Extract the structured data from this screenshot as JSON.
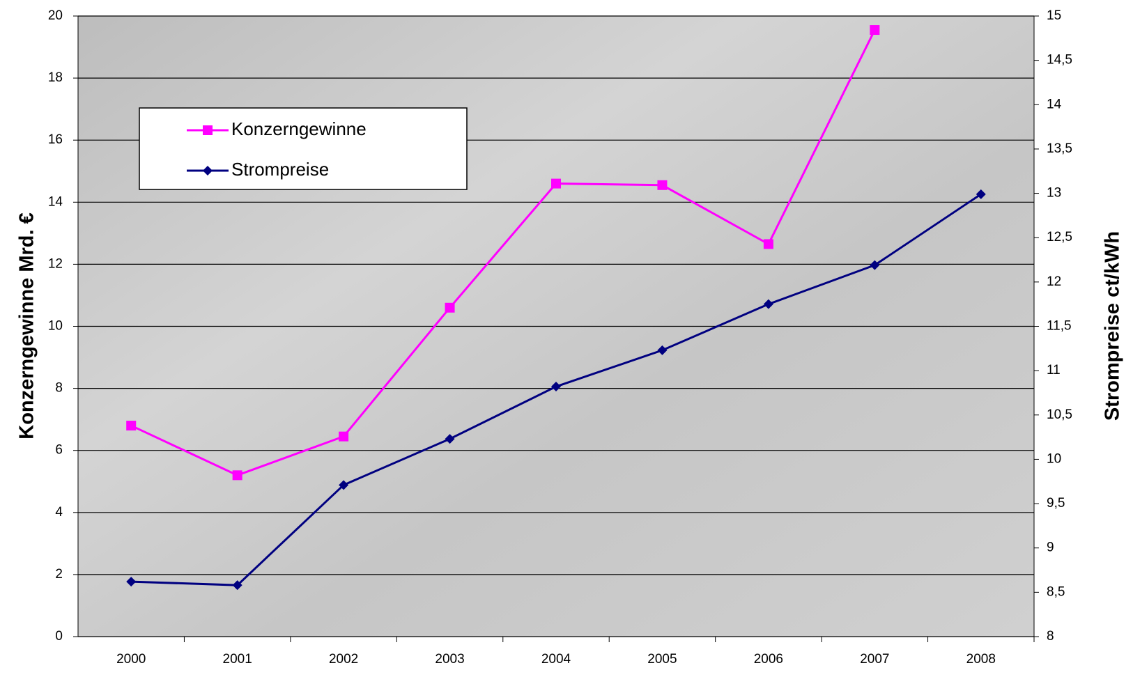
{
  "chart_data": {
    "type": "line",
    "x": [
      "2000",
      "2001",
      "2002",
      "2003",
      "2004",
      "2005",
      "2006",
      "2007",
      "2008"
    ],
    "ylabel": "Konzerngewinne Mrd. €",
    "y2label": "Strompreise ct/kWh",
    "ylim": [
      0,
      20
    ],
    "yticks": [
      0,
      2,
      4,
      6,
      8,
      10,
      12,
      14,
      16,
      18,
      20
    ],
    "y2lim": [
      8,
      15
    ],
    "y2ticks": [
      8,
      {
        "value": 8.5,
        "label": "8,5"
      },
      9,
      {
        "value": 9.5,
        "label": "9,5"
      },
      10,
      {
        "value": 10.5,
        "label": "10,5"
      },
      11,
      {
        "value": 11.5,
        "label": "11,5"
      },
      12,
      {
        "value": 12.5,
        "label": "12,5"
      },
      13,
      {
        "value": 13.5,
        "label": "13,5"
      },
      14,
      {
        "value": 14.5,
        "label": "14,5"
      },
      15
    ],
    "grid": true,
    "legend": "upper left",
    "series": [
      {
        "name": "Konzerngewinne",
        "color": "#ff00ff",
        "marker": "square",
        "values": [
          6.8,
          5.2,
          6.45,
          10.6,
          14.6,
          14.55,
          12.65,
          19.55,
          null
        ]
      },
      {
        "name": "Strompreise",
        "color": "#000080",
        "marker": "diamond",
        "axis": "y2",
        "values": [
          8.62,
          8.58,
          9.71,
          10.23,
          10.82,
          11.23,
          11.75,
          12.19,
          12.99
        ]
      }
    ]
  }
}
